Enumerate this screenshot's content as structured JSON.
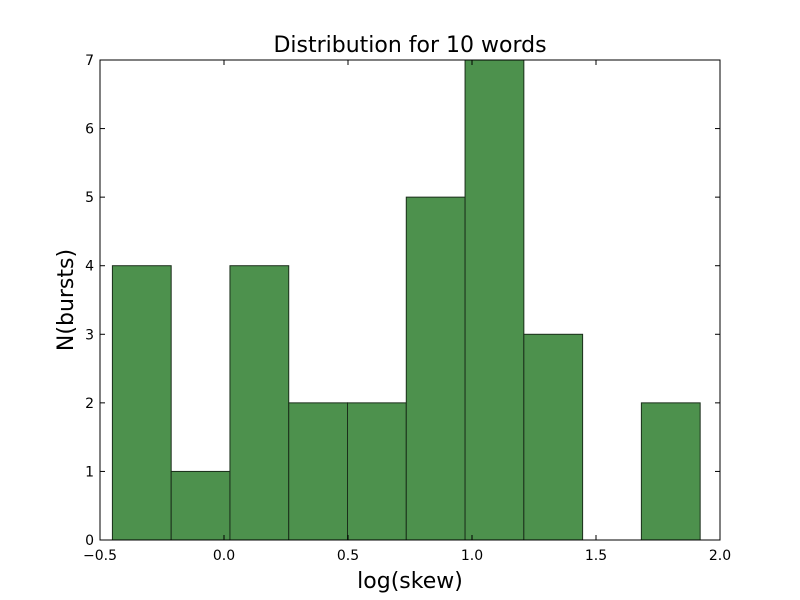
{
  "chart_data": {
    "type": "bar",
    "title": "Distribution for 10 words",
    "xlabel": "log(skew)",
    "ylabel": "N(bursts)",
    "xlim": [
      -0.5,
      2.0
    ],
    "ylim": [
      0,
      7
    ],
    "bin_edges": [
      -0.45,
      -0.213,
      0.024,
      0.261,
      0.498,
      0.735,
      0.972,
      1.209,
      1.446,
      1.683,
      1.92
    ],
    "values": [
      4,
      1,
      4,
      2,
      2,
      5,
      7,
      3,
      0,
      2
    ],
    "xticks": [
      -0.5,
      0.0,
      0.5,
      1.0,
      1.5,
      2.0
    ],
    "xtick_labels": [
      "−0.5",
      "0.0",
      "0.5",
      "1.0",
      "1.5",
      "2.0"
    ],
    "yticks": [
      0,
      1,
      2,
      3,
      4,
      5,
      6,
      7
    ],
    "ytick_labels": [
      "0",
      "1",
      "2",
      "3",
      "4",
      "5",
      "6",
      "7"
    ],
    "grid": false,
    "colors": {
      "bar_fill": "#4d914d",
      "bar_edge": "#1a2e1a",
      "axes": "#000000"
    }
  }
}
